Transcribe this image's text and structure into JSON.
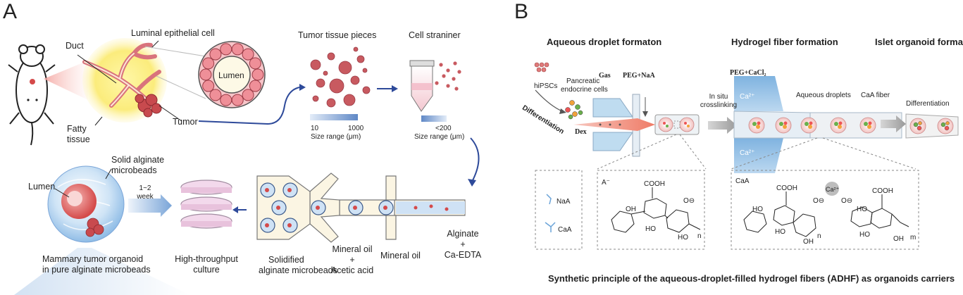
{
  "panel_a": {
    "letter": "A",
    "labels": {
      "duct": "Duct",
      "luminal_epithelial_cell": "Luminal epithelial cell",
      "lumen_top": "Lumen",
      "fatty_tissue_line1": "Fatty",
      "fatty_tissue_line2": "tissue",
      "tumor": "Tumor",
      "tumor_tissue_pieces": "Tumor tissue pieces",
      "cell_strainer": "Cell straniner",
      "size_min": "10",
      "size_max": "1000",
      "size_range": "Size range (μm)",
      "size_lt200": "<200",
      "size_range2": "Size range (μm)",
      "solid_alginate_line1": "Solid alginate",
      "solid_alginate_line2": "microbeads",
      "lumen_bottom": "Lumen",
      "week_line1": "1~2",
      "week_line2": "week",
      "organoid_line1": "Mammary tumor organoid",
      "organoid_line2": "in pure alginate microbeads",
      "high_throughput_line1": "High-throughput",
      "high_throughput_line2": "culture",
      "solidified_line1": "Solidified",
      "solidified_line2": "alginate microbeads",
      "mineral_acetic_line1": "Mineral oil",
      "mineral_acetic_line2": "+",
      "mineral_acetic_line3": "Acetic acid",
      "mineral_oil": "Mineral oil",
      "alginate_line1": "Alginate",
      "alginate_line2": "+",
      "alginate_line3": "Ca-EDTA"
    }
  },
  "panel_b": {
    "letter": "B",
    "headers": {
      "aqueous": "Aqueous droplet formaton",
      "hydrogel": "Hydrogel fiber formation",
      "islet": "Islet organoid formation"
    },
    "labels": {
      "hipscs": "hiPSCs",
      "pancreatic_line1": "Pancreatic",
      "pancreatic_line2": "endocrine cells",
      "differentiation_left": "Differentiation",
      "gas": "Gas",
      "peg_naa": "PEG+NaA",
      "dex": "Dex",
      "in_situ_line1": "In situ",
      "in_situ_line2": "crosslinking",
      "peg_cacl2": "PEG+CaCl₂",
      "ca_top": "Ca²⁺",
      "ca_bottom": "Ca²⁺",
      "aqueous_droplets": "Aqueous droplets",
      "caa_fiber": "CaA fiber",
      "differentiation_right": "Differentiation",
      "legend_naa": "NaA",
      "legend_caa": "CaA",
      "a_minus": "A⁻",
      "cooh_left": "COOH",
      "o_minus": "O⊖",
      "oh_1": "OH",
      "ho_1": "HO",
      "ho_2": "HO",
      "n_left": "n",
      "caa_box": "CaA",
      "cooh_mid": "COOH",
      "cooh_right": "COOH",
      "ca_ion": "Ca²⁺",
      "o_mid": "O⊖",
      "o_right": "O⊖",
      "ho_3": "HO",
      "ho_4": "HO",
      "ho_5": "HO",
      "ho_6": "HO",
      "oh_2": "OH",
      "oh_3": "OH",
      "n_right": "n",
      "m_right": "m"
    },
    "caption": "Synthetic principle of the aqueous-droplet-filled hydrogel fibers (ADHF)  as organoids carriers"
  }
}
